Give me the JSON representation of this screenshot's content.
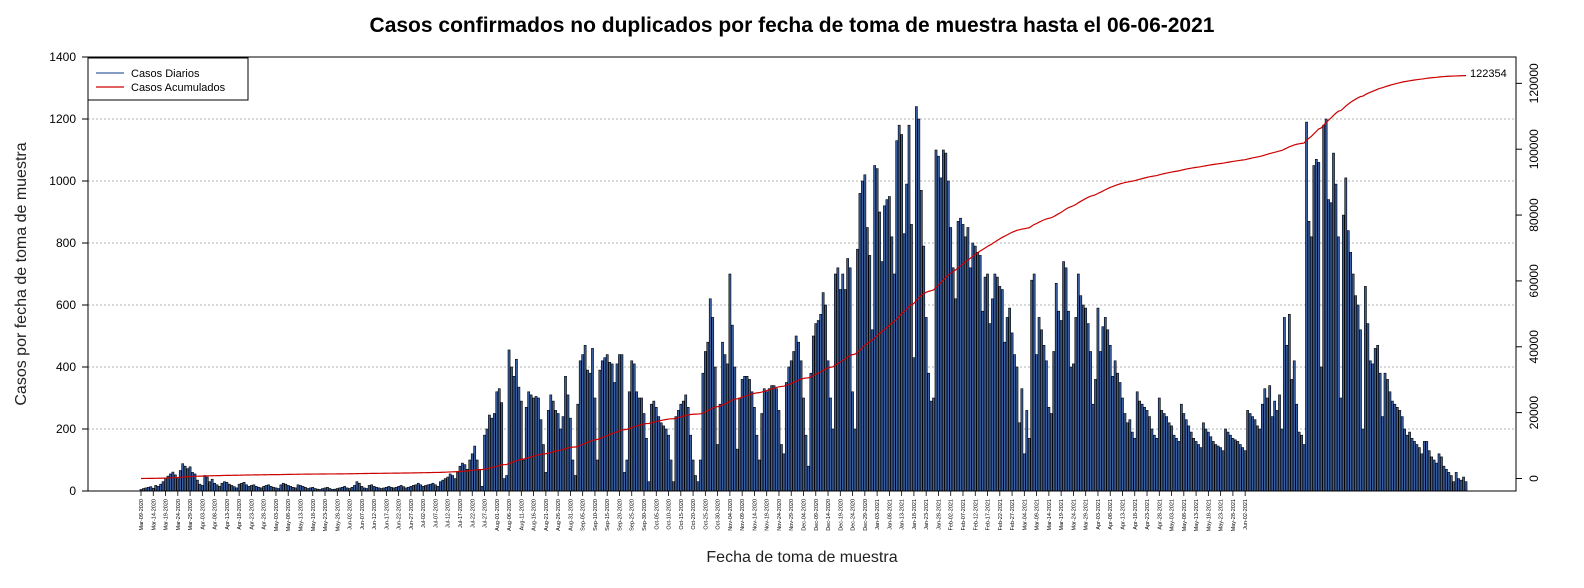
{
  "chart_data": {
    "type": "bar",
    "title": "Casos confirmados no duplicados por fecha de toma de muestra hasta el 06-06-2021",
    "xlabel": "Fecha de toma de muestra",
    "ylabel": "Casos por fecha de toma de muestra",
    "ylim": [
      0,
      1400
    ],
    "y2lim": [
      -3800,
      128000
    ],
    "y_ticks": [
      0,
      200,
      400,
      600,
      800,
      1000,
      1200,
      1400
    ],
    "y2_ticks": [
      0,
      20000,
      40000,
      60000,
      80000,
      100000,
      120000
    ],
    "grid": true,
    "legend_position": "top-left",
    "legend": [
      {
        "name": "Casos Diarios",
        "color": "#3a5fa0"
      },
      {
        "name": "Casos Acumulados",
        "color": "#cc0000"
      }
    ],
    "cumulative_end_label": "122354",
    "start_date": "2020-03-09",
    "end_date": "2021-06-05",
    "x_tick_labels": [
      "Mar-09-2020",
      "Mar-14-2020",
      "Mar-19-2020",
      "Mar-24-2020",
      "Mar-29-2020",
      "Apr-03-2020",
      "Apr-08-2020",
      "Apr-13-2020",
      "Apr-18-2020",
      "Apr-23-2020",
      "Apr-28-2020",
      "May-03-2020",
      "May-08-2020",
      "May-13-2020",
      "May-18-2020",
      "May-23-2020",
      "May-28-2020",
      "Jun-02-2020",
      "Jun-07-2020",
      "Jun-12-2020",
      "Jun-17-2020",
      "Jun-22-2020",
      "Jun-27-2020",
      "Jul-02-2020",
      "Jul-07-2020",
      "Jul-12-2020",
      "Jul-17-2020",
      "Jul-22-2020",
      "Jul-27-2020",
      "Aug-01-2020",
      "Aug-06-2020",
      "Aug-11-2020",
      "Aug-16-2020",
      "Aug-21-2020",
      "Aug-26-2020",
      "Aug-31-2020",
      "Sep-05-2020",
      "Sep-10-2020",
      "Sep-15-2020",
      "Sep-20-2020",
      "Sep-25-2020",
      "Sep-30-2020",
      "Oct-05-2020",
      "Oct-10-2020",
      "Oct-15-2020",
      "Oct-20-2020",
      "Oct-25-2020",
      "Oct-30-2020",
      "Nov-04-2020",
      "Nov-09-2020",
      "Nov-14-2020",
      "Nov-19-2020",
      "Nov-24-2020",
      "Nov-29-2020",
      "Dec-04-2020",
      "Dec-09-2020",
      "Dec-14-2020",
      "Dec-19-2020",
      "Dec-24-2020",
      "Dec-29-2020",
      "Jan-03-2021",
      "Jan-08-2021",
      "Jan-13-2021",
      "Jan-18-2021",
      "Jan-23-2021",
      "Jan-28-2021",
      "Feb-02-2021",
      "Feb-07-2021",
      "Feb-12-2021",
      "Feb-17-2021",
      "Feb-22-2021",
      "Feb-27-2021",
      "Mar-04-2021",
      "Mar-09-2021",
      "Mar-14-2021",
      "Mar-19-2021",
      "Mar-24-2021",
      "Mar-29-2021",
      "Apr-03-2021",
      "Apr-08-2021",
      "Apr-13-2021",
      "Apr-18-2021",
      "Apr-23-2021",
      "Apr-28-2021",
      "May-03-2021",
      "May-08-2021",
      "May-13-2021",
      "May-18-2021",
      "May-23-2021",
      "May-28-2021",
      "Jun-02-2021"
    ],
    "daily_values": [
      5,
      8,
      10,
      12,
      14,
      9,
      18,
      15,
      22,
      30,
      42,
      48,
      55,
      61,
      52,
      40,
      66,
      88,
      80,
      72,
      78,
      60,
      55,
      35,
      22,
      18,
      50,
      45,
      30,
      38,
      25,
      20,
      15,
      25,
      30,
      28,
      22,
      18,
      14,
      10,
      22,
      25,
      28,
      20,
      15,
      18,
      20,
      15,
      12,
      10,
      15,
      18,
      20,
      15,
      12,
      10,
      8,
      20,
      25,
      22,
      18,
      15,
      12,
      10,
      20,
      18,
      15,
      12,
      8,
      10,
      12,
      8,
      6,
      5,
      8,
      10,
      12,
      8,
      5,
      6,
      8,
      10,
      12,
      15,
      10,
      8,
      12,
      18,
      30,
      25,
      15,
      10,
      8,
      18,
      20,
      15,
      12,
      10,
      8,
      10,
      12,
      15,
      12,
      10,
      12,
      15,
      18,
      14,
      10,
      12,
      15,
      18,
      20,
      25,
      20,
      15,
      18,
      20,
      22,
      25,
      20,
      15,
      30,
      35,
      40,
      45,
      55,
      50,
      40,
      60,
      80,
      90,
      85,
      70,
      100,
      120,
      145,
      100,
      70,
      15,
      180,
      200,
      245,
      235,
      250,
      320,
      330,
      285,
      40,
      50,
      455,
      400,
      370,
      425,
      335,
      290,
      100,
      270,
      320,
      310,
      300,
      305,
      300,
      230,
      150,
      60,
      260,
      310,
      290,
      260,
      250,
      200,
      240,
      370,
      310,
      235,
      100,
      50,
      280,
      420,
      440,
      470,
      390,
      380,
      460,
      300,
      100,
      390,
      420,
      430,
      440,
      415,
      410,
      350,
      410,
      440,
      440,
      60,
      100,
      320,
      420,
      410,
      320,
      300,
      300,
      250,
      170,
      30,
      280,
      290,
      270,
      240,
      220,
      210,
      200,
      180,
      100,
      30,
      240,
      260,
      280,
      290,
      310,
      270,
      180,
      100,
      50,
      30,
      100,
      380,
      450,
      480,
      620,
      560,
      400,
      150,
      280,
      480,
      440,
      410,
      700,
      535,
      400,
      135,
      300,
      360,
      370,
      370,
      360,
      320,
      270,
      180,
      100,
      250,
      330,
      320,
      330,
      340,
      340,
      330,
      260,
      150,
      120,
      350,
      400,
      420,
      450,
      500,
      480,
      420,
      300,
      180,
      80,
      380,
      500,
      540,
      550,
      570,
      640,
      600,
      420,
      300,
      200,
      700,
      720,
      650,
      700,
      650,
      750,
      720,
      320,
      200,
      780,
      960,
      1000,
      1020,
      850,
      760,
      520,
      1050,
      1040,
      900,
      740,
      920,
      940,
      950,
      820,
      700,
      1130,
      1180,
      1150,
      830,
      990,
      1180,
      860,
      430,
      1240,
      1200,
      970,
      790,
      560,
      380,
      290,
      300,
      1100,
      1080,
      1010,
      1100,
      1090,
      1000,
      850,
      720,
      620,
      870,
      880,
      860,
      820,
      850,
      720,
      800,
      790,
      770,
      760,
      580,
      690,
      700,
      540,
      620,
      700,
      690,
      660,
      650,
      480,
      560,
      590,
      510,
      440,
      400,
      220,
      330,
      120,
      260,
      170,
      680,
      700,
      440,
      560,
      520,
      470,
      420,
      270,
      250,
      450,
      670,
      580,
      550,
      740,
      720,
      580,
      400,
      410,
      560,
      700,
      630,
      600,
      590,
      540,
      450,
      280,
      360,
      590,
      450,
      530,
      560,
      520,
      470,
      370,
      420,
      380,
      350,
      300,
      250,
      220,
      230,
      190,
      170,
      320,
      290,
      280,
      270,
      260,
      240,
      200,
      180,
      170,
      300,
      260,
      250,
      240,
      220,
      210,
      180,
      170,
      160,
      280,
      250,
      230,
      210,
      190,
      170,
      160,
      150,
      140,
      220,
      200,
      190,
      175,
      160,
      150,
      145,
      140,
      130,
      200,
      190,
      180,
      170,
      165,
      160,
      150,
      140,
      130,
      260,
      250,
      240,
      230,
      210,
      200,
      280,
      330,
      300,
      340,
      240,
      290,
      260,
      310,
      200,
      560,
      470,
      570,
      360,
      420,
      280,
      190,
      180,
      150,
      1190,
      870,
      820,
      1050,
      1070,
      1060,
      400,
      1180,
      1200,
      940,
      930,
      1090,
      990,
      820,
      300,
      890,
      1010,
      840,
      770,
      700,
      630,
      600,
      520,
      200,
      660,
      540,
      420,
      410,
      460,
      470,
      380,
      240,
      380,
      360,
      320,
      290,
      280,
      270,
      260,
      240,
      200,
      180,
      190,
      170,
      160,
      150,
      140,
      120,
      160,
      160,
      130,
      110,
      100,
      90,
      120,
      110,
      80,
      70,
      60,
      50,
      30,
      60,
      40,
      35,
      45,
      30
    ]
  }
}
